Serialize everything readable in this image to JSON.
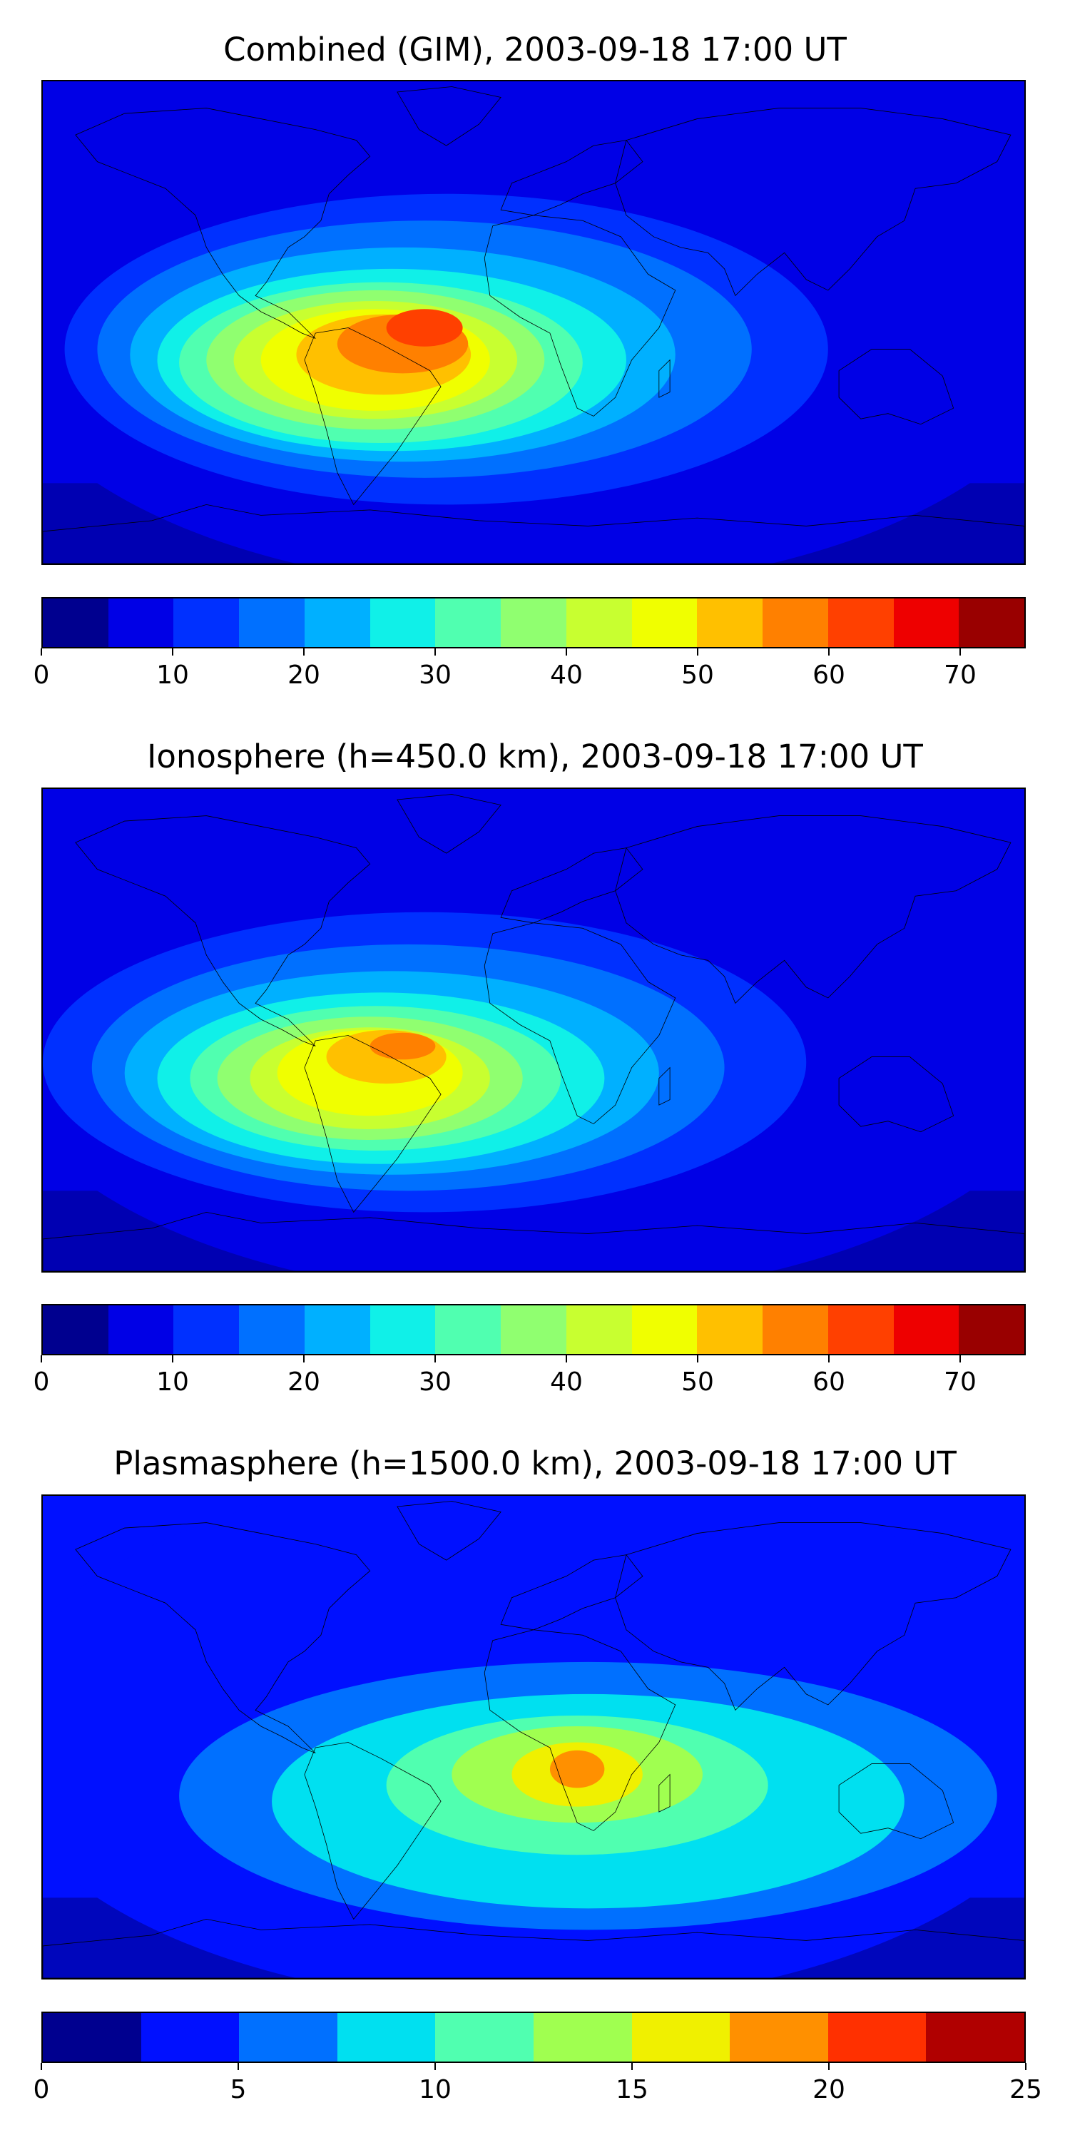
{
  "panels": [
    {
      "title": "Combined (GIM), 2003-09-18 17:00 UT",
      "colorbar": {
        "min": 0,
        "max": 75,
        "step": 5,
        "colors": [
          "#00008f",
          "#0000e6",
          "#0030ff",
          "#0070ff",
          "#00b0ff",
          "#10f0e8",
          "#50ffb0",
          "#90ff70",
          "#c8ff30",
          "#f0ff00",
          "#ffc000",
          "#ff8000",
          "#ff4000",
          "#ee0000",
          "#990000"
        ],
        "ticks": [
          0,
          10,
          20,
          30,
          40,
          50,
          60,
          70
        ]
      },
      "field_peak": {
        "location": "South America / Brazil",
        "value": 70
      }
    },
    {
      "title": "Ionosphere  (h=450.0 km), 2003-09-18 17:00 UT",
      "colorbar": {
        "min": 0,
        "max": 75,
        "step": 5,
        "colors": [
          "#00008f",
          "#0000e6",
          "#0030ff",
          "#0070ff",
          "#00b0ff",
          "#10f0e8",
          "#50ffb0",
          "#90ff70",
          "#c8ff30",
          "#f0ff00",
          "#ffc000",
          "#ff8000",
          "#ff4000",
          "#ee0000",
          "#990000"
        ],
        "ticks": [
          0,
          10,
          20,
          30,
          40,
          50,
          60,
          70
        ]
      },
      "field_peak": {
        "location": "South America / Brazil",
        "value": 55
      }
    },
    {
      "title": "Plasmasphere (h=1500.0 km), 2003-09-18 17:00 UT",
      "colorbar": {
        "min": 0,
        "max": 25,
        "step": 2.5,
        "colors": [
          "#00008f",
          "#0010ff",
          "#0070ff",
          "#00e0f0",
          "#50ffb0",
          "#a0ff50",
          "#f0f000",
          "#ff9000",
          "#ff3000",
          "#b00000"
        ],
        "ticks": [
          0,
          5,
          10,
          15,
          20,
          25
        ]
      },
      "field_peak": {
        "location": "Central Africa",
        "value": 20
      }
    }
  ],
  "map": {
    "projection": "PlateCarree",
    "coastlines": true,
    "coastline_color": "#000000"
  }
}
